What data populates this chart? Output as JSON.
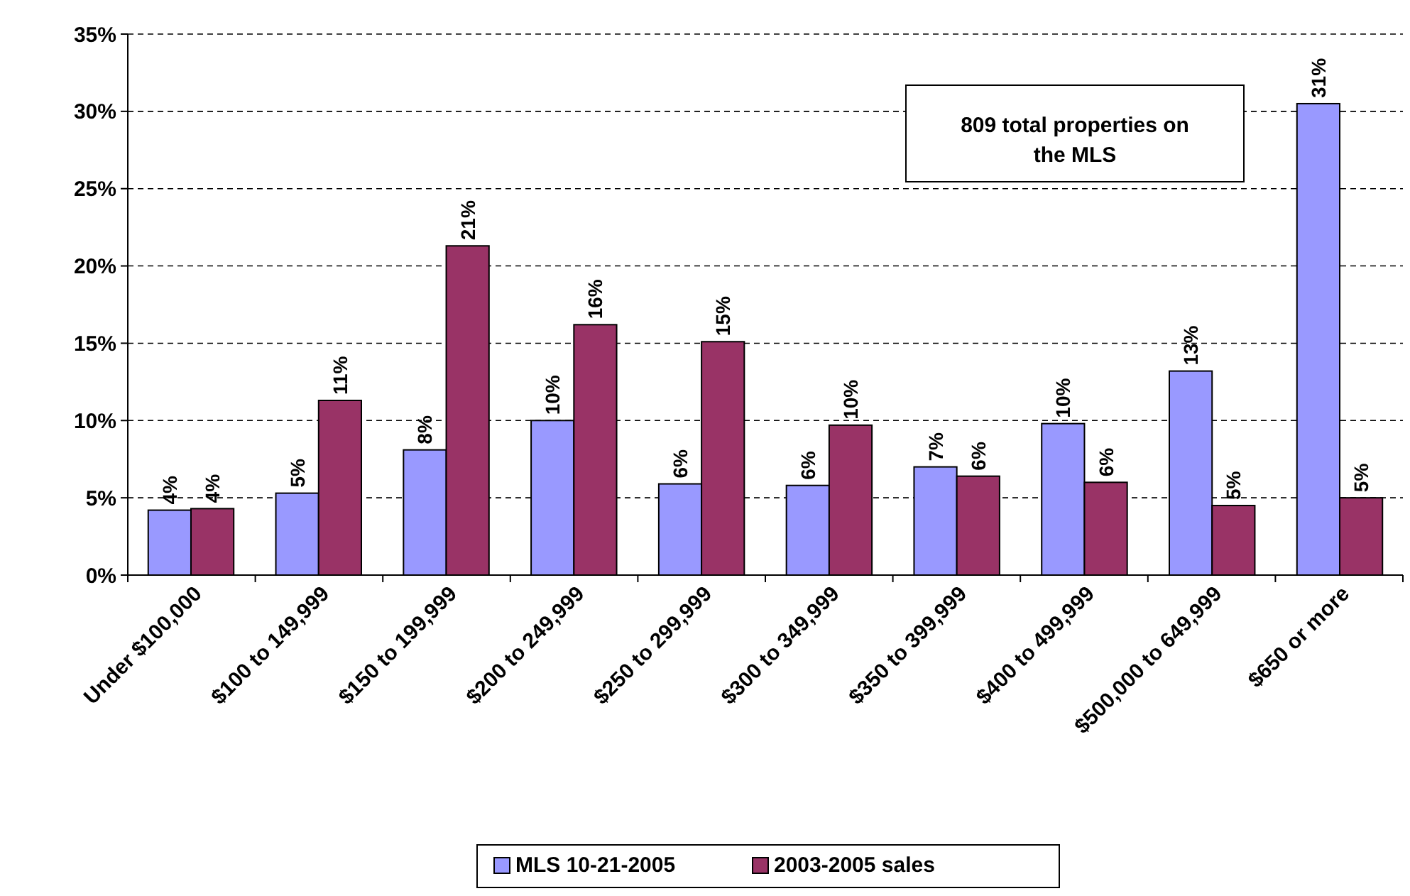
{
  "chart_data": {
    "type": "bar",
    "categories": [
      "Under $100,000",
      "$100 to 149,999",
      "$150 to 199,999",
      "$200 to 249,999",
      "$250 to 299,999",
      "$300 to 349,999",
      "$350 to 399,999",
      "$400 to 499,999",
      "$500,000 to 649,999",
      "$650 or more"
    ],
    "series": [
      {
        "name": "MLS 10-21-2005",
        "color": "#9999ff",
        "values": [
          4.2,
          5.3,
          8.1,
          10.0,
          5.9,
          5.8,
          7.0,
          9.8,
          13.2,
          30.5
        ],
        "value_labels": [
          "4%",
          "5%",
          "8%",
          "10%",
          "6%",
          "6%",
          "7%",
          "10%",
          "13%",
          "31%"
        ]
      },
      {
        "name": "2003-2005 sales",
        "color": "#993366",
        "values": [
          4.3,
          11.3,
          21.3,
          16.2,
          15.1,
          9.7,
          6.4,
          6.0,
          4.5,
          5.0
        ],
        "value_labels": [
          "4%",
          "11%",
          "21%",
          "16%",
          "15%",
          "10%",
          "6%",
          "6%",
          "5%",
          "5%"
        ]
      }
    ],
    "ylim": [
      0,
      35
    ],
    "yticks": [
      {
        "value": 0,
        "label": "0%"
      },
      {
        "value": 5,
        "label": "5%"
      },
      {
        "value": 10,
        "label": "10%"
      },
      {
        "value": 15,
        "label": "15%"
      },
      {
        "value": 20,
        "label": "20%"
      },
      {
        "value": 25,
        "label": "25%"
      },
      {
        "value": 30,
        "label": "30%"
      },
      {
        "value": 35,
        "label": "35%"
      }
    ],
    "grid": "y",
    "legend": "bottom",
    "annotations": [
      "809 total properties on the MLS"
    ]
  }
}
